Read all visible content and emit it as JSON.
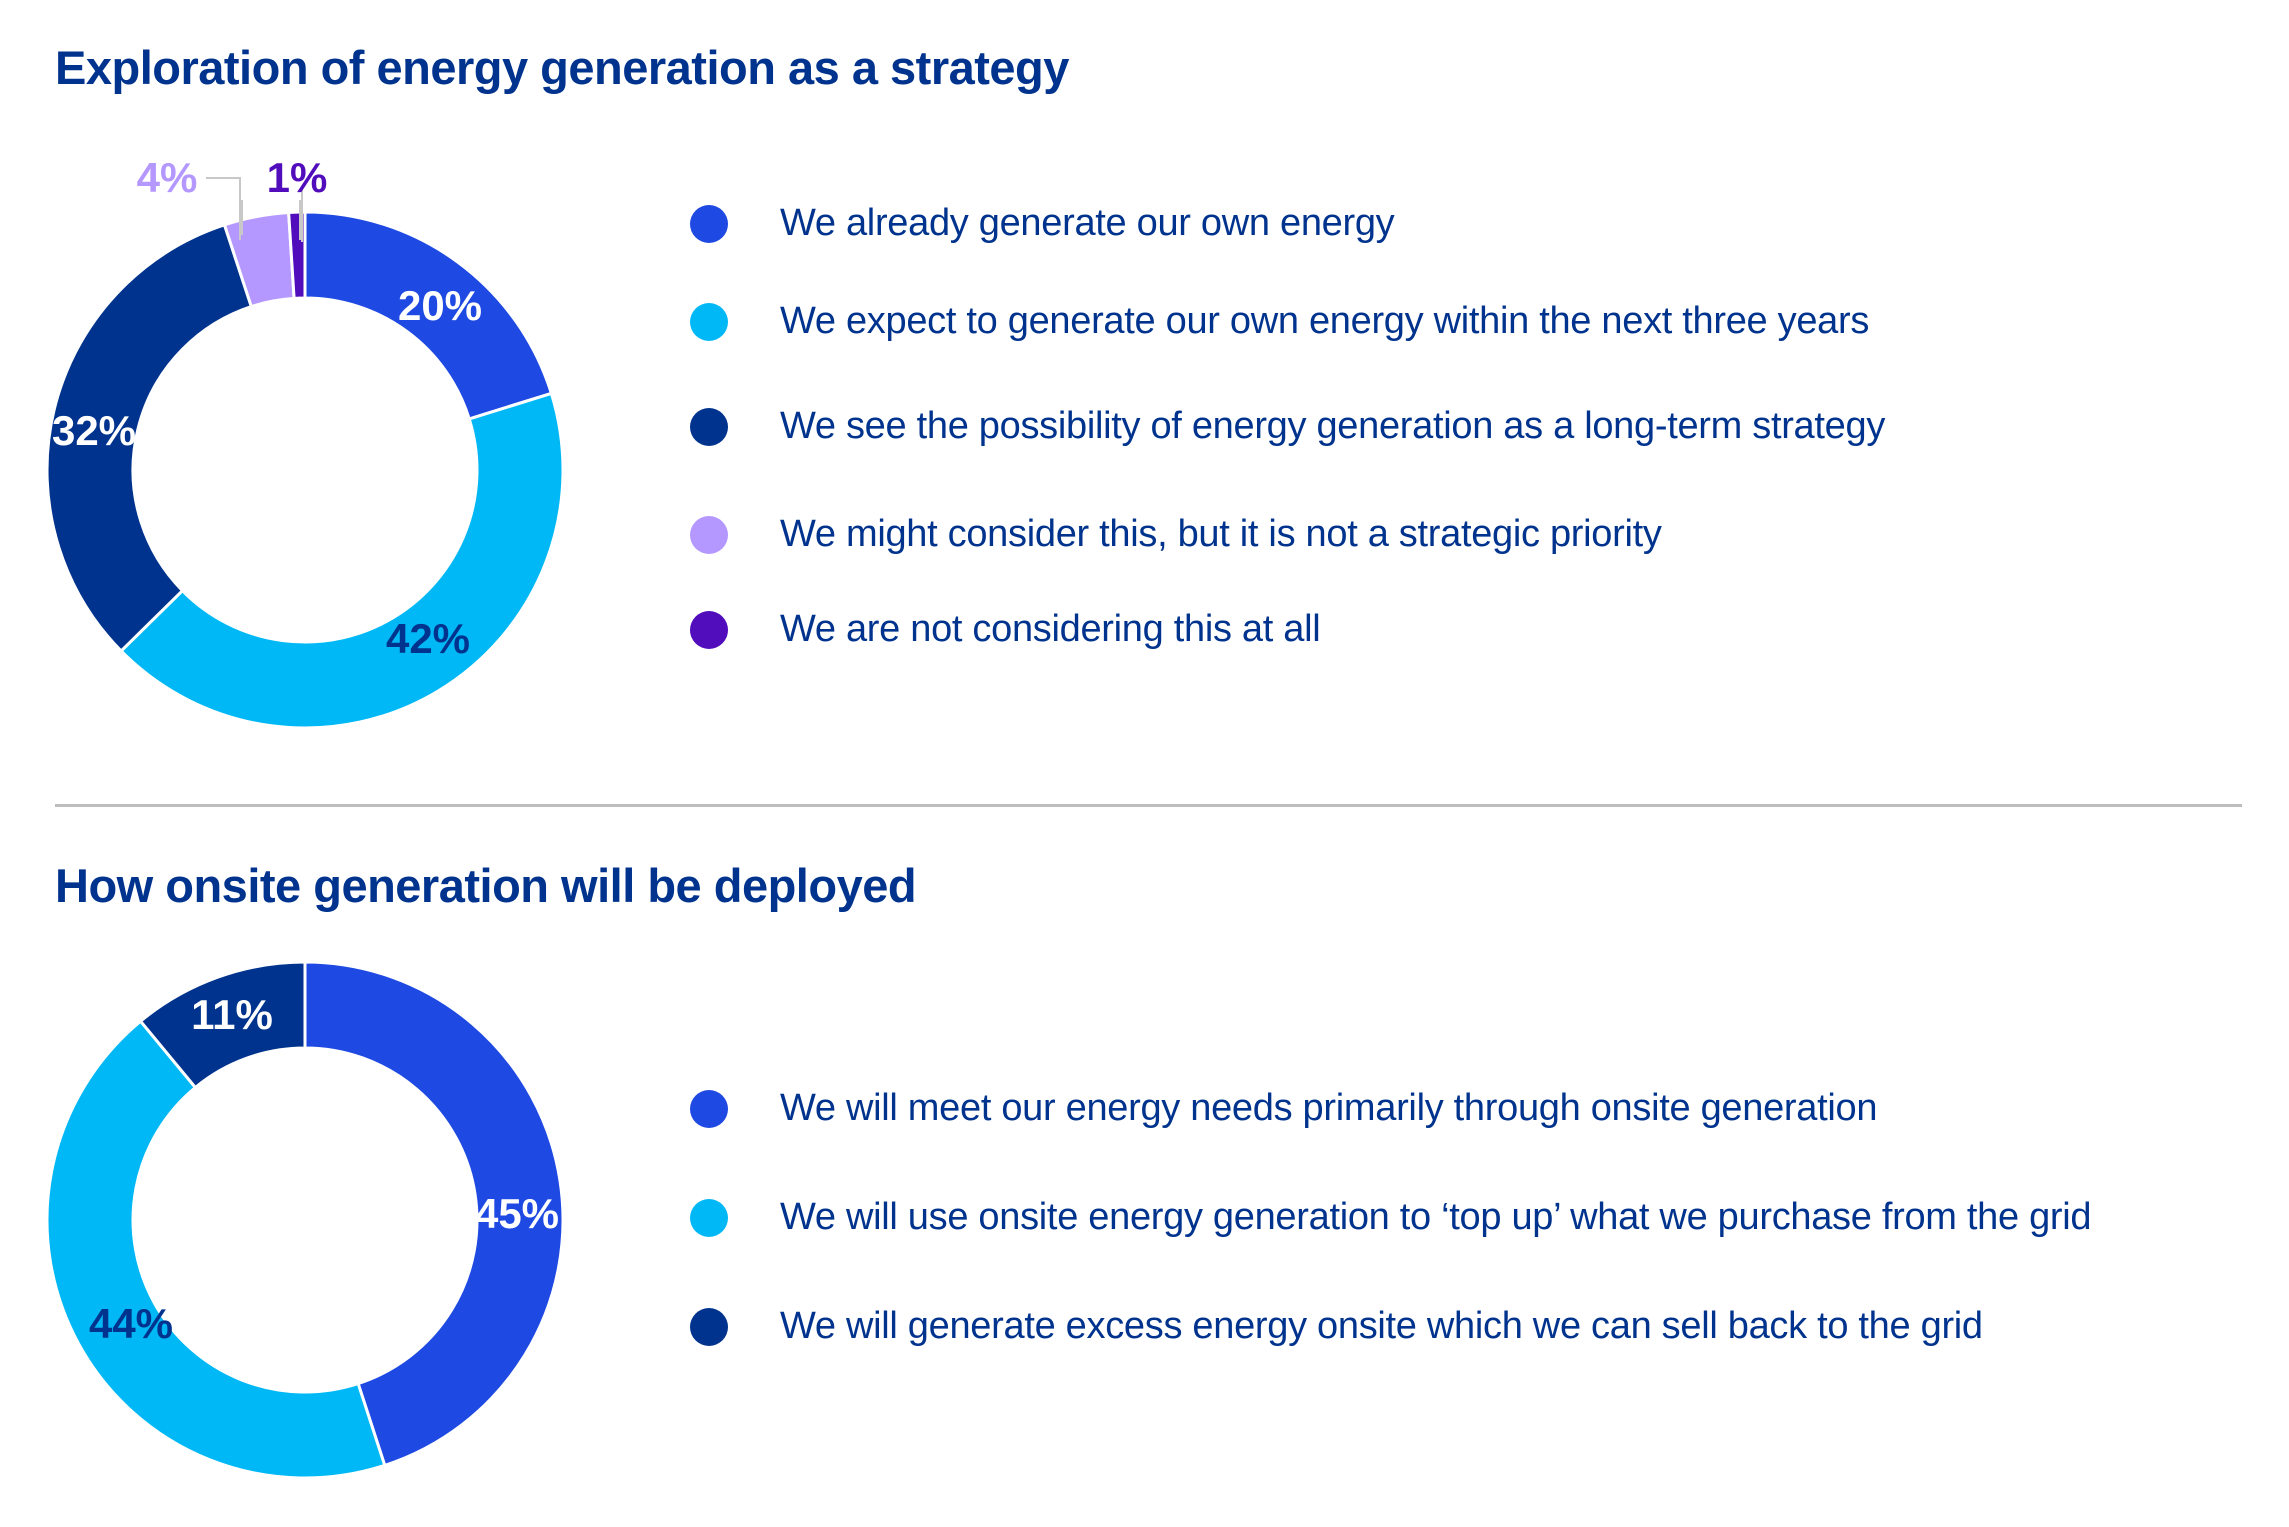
{
  "chart_data": [
    {
      "type": "pie",
      "variant": "donut",
      "title": "Exploration of energy generation as a strategy",
      "categories": [
        "We already generate our own energy",
        "We expect to generate our own energy within the next three years",
        "We see the possibility of energy generation as a long-term strategy",
        "We might consider this, but it is not a strategic priority",
        "We are not considering this at all"
      ],
      "values": [
        20,
        42,
        32,
        4,
        1
      ],
      "labels": [
        "20%",
        "42%",
        "32%",
        "4%",
        "1%"
      ],
      "colors": [
        "#1e49e2",
        "#00b8f5",
        "#00338d",
        "#b497ff",
        "#510dbc"
      ],
      "legend_position": "right"
    },
    {
      "type": "pie",
      "variant": "donut",
      "title": "How onsite generation will be deployed",
      "categories": [
        "We will meet our energy needs primarily through onsite generation",
        "We will use onsite energy generation to ‘top up’ what we purchase from the grid",
        "We will generate excess energy onsite which we can sell back to the grid"
      ],
      "values": [
        45,
        44,
        11
      ],
      "labels": [
        "45%",
        "44%",
        "11%"
      ],
      "colors": [
        "#1e49e2",
        "#00b8f5",
        "#00338d"
      ],
      "legend_position": "right"
    }
  ],
  "section1": {
    "title": "Exploration of energy generation as a strategy",
    "legend": [
      {
        "label": "We already generate our own energy",
        "color": "#1e49e2"
      },
      {
        "label": "We expect to generate our own energy within the next three years",
        "color": "#00b8f5"
      },
      {
        "label": "We see the possibility of energy generation as a long-term strategy",
        "color": "#00338d"
      },
      {
        "label": "We might consider this, but it is not a strategic priority",
        "color": "#b497ff"
      },
      {
        "label": "We are not considering this at all",
        "color": "#510dbc"
      }
    ],
    "slice_labels": [
      "20%",
      "42%",
      "32%",
      "4%",
      "1%"
    ]
  },
  "section2": {
    "title": "How onsite generation will be deployed",
    "legend": [
      {
        "label": "We will meet our energy needs primarily through onsite generation",
        "color": "#1e49e2"
      },
      {
        "label": "We will use onsite energy generation to ‘top up’ what we purchase from the grid",
        "color": "#00b8f5"
      },
      {
        "label": "We will generate excess energy onsite which we can sell back to the grid",
        "color": "#00338d"
      }
    ],
    "slice_labels": [
      "45%",
      "44%",
      "11%"
    ]
  }
}
